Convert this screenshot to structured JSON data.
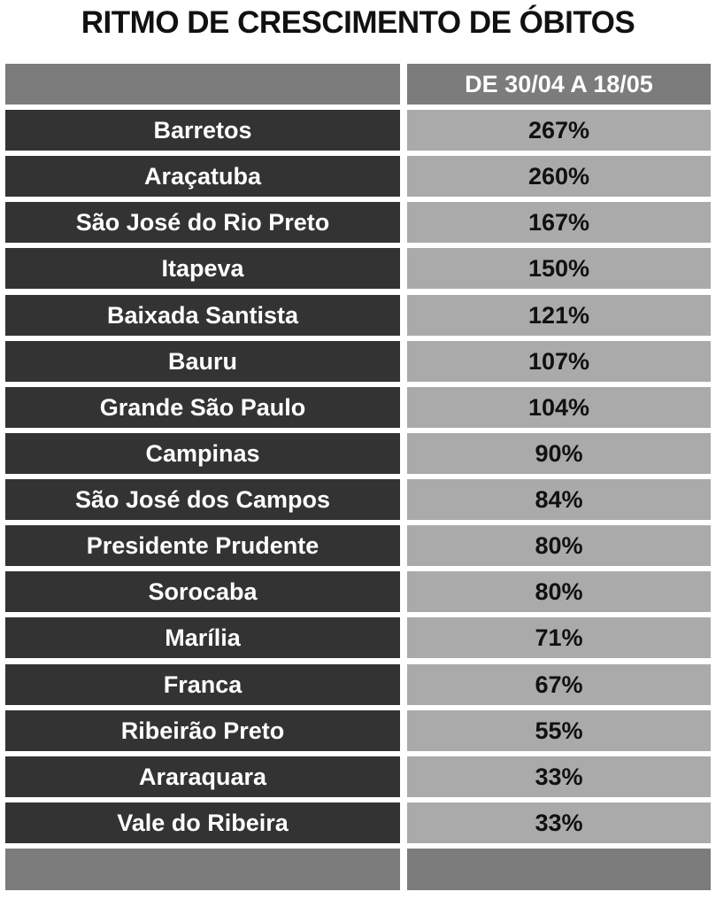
{
  "title": "RITMO DE CRESCIMENTO DE ÓBITOS",
  "table": {
    "column_header": "DE 30/04 A 18/05",
    "rows": [
      [
        "Barretos",
        "267%"
      ],
      [
        "Araçatuba",
        "260%"
      ],
      [
        "São José do Rio Preto",
        "167%"
      ],
      [
        "Itapeva",
        "150%"
      ],
      [
        "Baixada Santista",
        "121%"
      ],
      [
        "Bauru",
        "107%"
      ],
      [
        "Grande São Paulo",
        "104%"
      ],
      [
        "Campinas",
        "90%"
      ],
      [
        "São José dos Campos",
        "84%"
      ],
      [
        "Presidente Prudente",
        "80%"
      ],
      [
        "Sorocaba",
        "80%"
      ],
      [
        "Marília",
        "71%"
      ],
      [
        "Franca",
        "67%"
      ],
      [
        "Ribeirão Preto",
        "55%"
      ],
      [
        "Araraquara",
        "33%"
      ],
      [
        "Vale do Ribeira",
        "33%"
      ]
    ]
  }
}
